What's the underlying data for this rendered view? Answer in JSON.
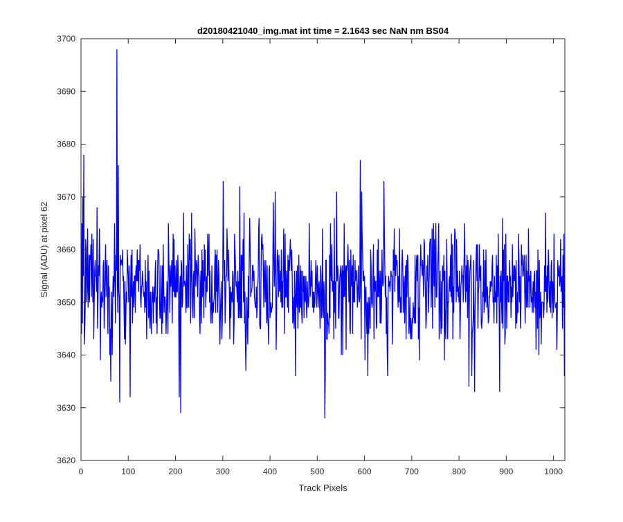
{
  "chart_data": {
    "type": "line",
    "title": "d20180421040_img.mat int time = 2.1643 sec  NaN nm BS04",
    "xlabel": "Track Pixels",
    "ylabel": "Signal (ADU) at pixel 62",
    "xlim": [
      0,
      1024
    ],
    "ylim": [
      3620,
      3700
    ],
    "xticks": [
      "0",
      "100",
      "200",
      "300",
      "400",
      "500",
      "600",
      "700",
      "800",
      "900",
      "1000"
    ],
    "yticks": [
      "3620",
      "3630",
      "3640",
      "3650",
      "3660",
      "3670",
      "3680",
      "3690",
      "3700"
    ],
    "grid": false,
    "legend": "none",
    "series": [
      {
        "color": "#0000ff",
        "n_points": 1024,
        "baseline": 3653,
        "noise_amplitude": 7,
        "notable_points": [
          {
            "x": 1,
            "y": 3665
          },
          {
            "x": 3,
            "y": 3670
          },
          {
            "x": 5,
            "y": 3678
          },
          {
            "x": 7,
            "y": 3645
          },
          {
            "x": 9,
            "y": 3662
          },
          {
            "x": 75,
            "y": 3698
          },
          {
            "x": 78,
            "y": 3676
          },
          {
            "x": 81,
            "y": 3631
          },
          {
            "x": 62,
            "y": 3635
          },
          {
            "x": 103,
            "y": 3632
          },
          {
            "x": 207,
            "y": 3632
          },
          {
            "x": 210,
            "y": 3629
          },
          {
            "x": 300,
            "y": 3673
          },
          {
            "x": 335,
            "y": 3672
          },
          {
            "x": 410,
            "y": 3671
          },
          {
            "x": 515,
            "y": 3628
          },
          {
            "x": 590,
            "y": 3677
          },
          {
            "x": 640,
            "y": 3673
          },
          {
            "x": 820,
            "y": 3634
          },
          {
            "x": 832,
            "y": 3633
          },
          {
            "x": 885,
            "y": 3633
          },
          {
            "x": 1022,
            "y": 3636
          }
        ]
      }
    ]
  }
}
